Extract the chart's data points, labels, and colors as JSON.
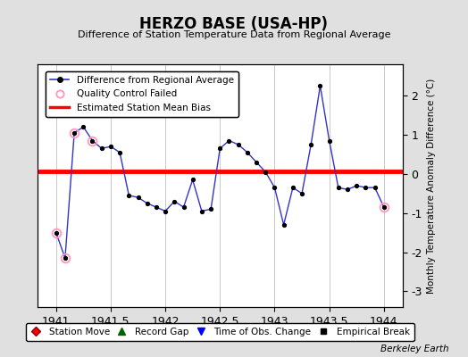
{
  "title": "HERZO BASE (USA-HP)",
  "subtitle": "Difference of Station Temperature Data from Regional Average",
  "ylabel_right": "Monthly Temperature Anomaly Difference (°C)",
  "background_color": "#e0e0e0",
  "plot_bg_color": "#ffffff",
  "xlim": [
    1940.83,
    1944.17
  ],
  "ylim": [
    -3.4,
    2.8
  ],
  "yticks": [
    -3,
    -2,
    -1,
    0,
    1,
    2
  ],
  "xticks": [
    1941,
    1941.5,
    1942,
    1942.5,
    1943,
    1943.5,
    1944
  ],
  "bias_value": 0.07,
  "line_color": "#3333cc",
  "line_marker_color": "#000000",
  "qc_circle_color": "#ff99bb",
  "x_data": [
    1941.0,
    1941.083,
    1941.167,
    1941.25,
    1941.333,
    1941.417,
    1941.5,
    1941.583,
    1941.667,
    1941.75,
    1941.833,
    1941.917,
    1942.0,
    1942.083,
    1942.167,
    1942.25,
    1942.333,
    1942.417,
    1942.5,
    1942.583,
    1942.667,
    1942.75,
    1942.833,
    1942.917,
    1943.0,
    1943.083,
    1943.167,
    1943.25,
    1943.333,
    1943.417,
    1943.5,
    1943.583,
    1943.667,
    1943.75,
    1943.833,
    1943.917,
    1944.0
  ],
  "y_data": [
    -1.5,
    -2.15,
    1.05,
    1.2,
    0.85,
    0.65,
    0.7,
    0.55,
    -0.55,
    -0.6,
    -0.75,
    -0.85,
    -0.95,
    -0.7,
    -0.85,
    -0.15,
    -0.95,
    -0.9,
    0.65,
    0.85,
    0.75,
    0.55,
    0.3,
    0.05,
    -0.35,
    -1.3,
    -0.35,
    -0.5,
    0.75,
    2.25,
    0.85,
    -0.35,
    -0.4,
    -0.3,
    -0.35,
    -0.35,
    -0.85
  ],
  "qc_failed_indices": [
    0,
    1,
    2,
    4,
    36
  ],
  "watermark": "Berkeley Earth",
  "legend1_items": [
    "Difference from Regional Average",
    "Quality Control Failed",
    "Estimated Station Mean Bias"
  ],
  "legend2_items": [
    "Station Move",
    "Record Gap",
    "Time of Obs. Change",
    "Empirical Break"
  ]
}
